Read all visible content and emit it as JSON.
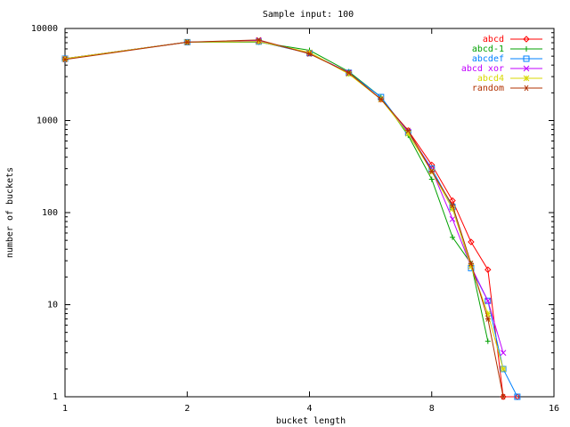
{
  "chart_data": {
    "type": "line",
    "title": "Sample input: 100",
    "xlabel": "bucket length",
    "ylabel": "number of buckets",
    "x_scale": "log2",
    "y_scale": "log10",
    "xlim": [
      1,
      16
    ],
    "ylim": [
      1,
      10000
    ],
    "x_ticks": [
      1,
      2,
      4,
      8,
      16
    ],
    "x_tick_labels": [
      "1",
      "2",
      "4",
      "8",
      "16"
    ],
    "y_ticks": [
      1,
      10,
      100,
      1000,
      10000
    ],
    "y_tick_labels": [
      "1",
      "10",
      "100",
      "1000",
      "10000"
    ],
    "grid": false,
    "legend_position": "top-right",
    "series": [
      {
        "name": "abcd",
        "color": "#ff0000",
        "marker": "diamond",
        "x": [
          1,
          2,
          3,
          4,
          5,
          6,
          7,
          8,
          9,
          10,
          11,
          12,
          13
        ],
        "y": [
          4700,
          7100,
          7200,
          5400,
          3300,
          1700,
          780,
          330,
          135,
          48,
          24,
          1,
          1
        ]
      },
      {
        "name": "abcd-1",
        "color": "#00a000",
        "marker": "plus",
        "x": [
          1,
          2,
          3,
          4,
          5,
          6,
          7,
          8,
          9,
          10,
          11
        ],
        "y": [
          4700,
          7100,
          7100,
          5800,
          3400,
          1800,
          690,
          230,
          54,
          28,
          4
        ]
      },
      {
        "name": "abcdef",
        "color": "#0080ff",
        "marker": "square",
        "x": [
          1,
          2,
          3,
          4,
          5,
          6,
          7,
          8,
          9,
          10,
          11,
          12,
          13
        ],
        "y": [
          4700,
          7100,
          7200,
          5400,
          3300,
          1800,
          740,
          300,
          115,
          25,
          11,
          2,
          1
        ]
      },
      {
        "name": "abcd xor",
        "color": "#c000ff",
        "marker": "cross",
        "x": [
          1,
          2,
          3,
          4,
          5,
          6,
          7,
          8,
          9,
          10,
          11,
          12
        ],
        "y": [
          4700,
          7100,
          7400,
          5400,
          3300,
          1700,
          760,
          290,
          85,
          26,
          11,
          3
        ]
      },
      {
        "name": "abcd4",
        "color": "#d8d800",
        "marker": "star",
        "x": [
          1,
          2,
          3,
          4,
          5,
          6,
          7,
          8,
          9,
          10,
          11,
          12
        ],
        "y": [
          4700,
          7100,
          7200,
          5500,
          3200,
          1700,
          720,
          280,
          110,
          26,
          8,
          2
        ]
      },
      {
        "name": "random",
        "color": "#b03000",
        "marker": "asterisk",
        "x": [
          1,
          2,
          3,
          4,
          5,
          6,
          7,
          8,
          9,
          10,
          11,
          12
        ],
        "y": [
          4600,
          7100,
          7500,
          5300,
          3300,
          1700,
          780,
          280,
          120,
          28,
          7,
          1
        ]
      }
    ]
  }
}
